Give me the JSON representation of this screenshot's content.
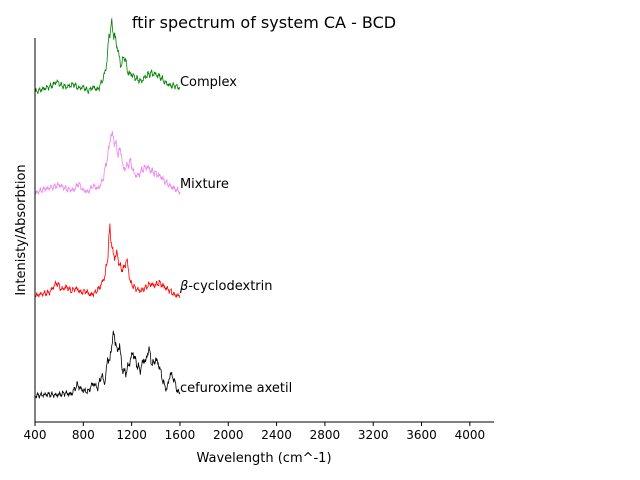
{
  "chart_data": {
    "type": "line",
    "title": "ftir spectrum of system CA - BCD",
    "xlabel": "Wavelength (cm^-1)",
    "ylabel": "Intenisty/Absorbtion",
    "xlim": [
      400,
      4200
    ],
    "xticks": [
      400,
      800,
      1200,
      1600,
      2000,
      2400,
      2800,
      3200,
      3600,
      4000
    ],
    "y_ticks_shown": false,
    "grid": false,
    "series": [
      {
        "name": "cefuroxime axetil",
        "label_parts": [
          {
            "text": "cefuroxime axetil",
            "italic": false
          }
        ],
        "color": "#000000",
        "offset": 0,
        "baseline": 0.08,
        "points": [
          [
            400,
            0.06
          ],
          [
            500,
            0.08
          ],
          [
            580,
            0.07
          ],
          [
            650,
            0.1
          ],
          [
            700,
            0.08
          ],
          [
            750,
            0.22
          ],
          [
            790,
            0.14
          ],
          [
            840,
            0.12
          ],
          [
            880,
            0.24
          ],
          [
            920,
            0.17
          ],
          [
            950,
            0.36
          ],
          [
            980,
            0.24
          ],
          [
            1000,
            0.6
          ],
          [
            1020,
            0.55
          ],
          [
            1040,
            0.88
          ],
          [
            1060,
            0.92
          ],
          [
            1080,
            0.68
          ],
          [
            1100,
            0.8
          ],
          [
            1120,
            0.45
          ],
          [
            1150,
            0.38
          ],
          [
            1180,
            0.52
          ],
          [
            1210,
            0.68
          ],
          [
            1240,
            0.52
          ],
          [
            1270,
            0.42
          ],
          [
            1300,
            0.58
          ],
          [
            1320,
            0.55
          ],
          [
            1340,
            0.75
          ],
          [
            1370,
            0.5
          ],
          [
            1400,
            0.58
          ],
          [
            1430,
            0.48
          ],
          [
            1460,
            0.26
          ],
          [
            1490,
            0.14
          ],
          [
            1520,
            0.38
          ],
          [
            1550,
            0.3
          ],
          [
            1580,
            0.12
          ],
          [
            1600,
            0.1
          ]
        ]
      },
      {
        "name": "β-cyclodextrin",
        "label_parts": [
          {
            "text": "β",
            "italic": true
          },
          {
            "text": "-cyclodextrin",
            "italic": false
          }
        ],
        "color": "#ff0000",
        "offset": 1,
        "baseline": 0.05,
        "points": [
          [
            400,
            0.03
          ],
          [
            460,
            0.06
          ],
          [
            520,
            0.08
          ],
          [
            580,
            0.22
          ],
          [
            620,
            0.12
          ],
          [
            660,
            0.16
          ],
          [
            700,
            0.1
          ],
          [
            740,
            0.14
          ],
          [
            780,
            0.08
          ],
          [
            820,
            0.1
          ],
          [
            860,
            0.04
          ],
          [
            900,
            0.08
          ],
          [
            940,
            0.16
          ],
          [
            980,
            0.32
          ],
          [
            1000,
            0.56
          ],
          [
            1020,
            1.0
          ],
          [
            1040,
            0.68
          ],
          [
            1060,
            0.58
          ],
          [
            1080,
            0.64
          ],
          [
            1100,
            0.46
          ],
          [
            1130,
            0.4
          ],
          [
            1160,
            0.55
          ],
          [
            1190,
            0.22
          ],
          [
            1230,
            0.14
          ],
          [
            1270,
            0.1
          ],
          [
            1310,
            0.14
          ],
          [
            1350,
            0.2
          ],
          [
            1390,
            0.18
          ],
          [
            1430,
            0.22
          ],
          [
            1470,
            0.16
          ],
          [
            1520,
            0.1
          ],
          [
            1560,
            0.04
          ],
          [
            1600,
            0.03
          ]
        ]
      },
      {
        "name": "Mixture",
        "label_parts": [
          {
            "text": "Mixture",
            "italic": false
          }
        ],
        "color": "#ee82ee",
        "offset": 2,
        "baseline": 0.06,
        "points": [
          [
            400,
            0.04
          ],
          [
            480,
            0.1
          ],
          [
            540,
            0.12
          ],
          [
            600,
            0.16
          ],
          [
            660,
            0.1
          ],
          [
            720,
            0.08
          ],
          [
            760,
            0.18
          ],
          [
            800,
            0.08
          ],
          [
            840,
            0.06
          ],
          [
            880,
            0.15
          ],
          [
            920,
            0.1
          ],
          [
            960,
            0.22
          ],
          [
            1000,
            0.55
          ],
          [
            1030,
            0.9
          ],
          [
            1060,
            0.78
          ],
          [
            1090,
            0.6
          ],
          [
            1110,
            0.68
          ],
          [
            1130,
            0.38
          ],
          [
            1160,
            0.42
          ],
          [
            1190,
            0.5
          ],
          [
            1220,
            0.32
          ],
          [
            1250,
            0.28
          ],
          [
            1290,
            0.38
          ],
          [
            1330,
            0.42
          ],
          [
            1360,
            0.36
          ],
          [
            1400,
            0.32
          ],
          [
            1440,
            0.28
          ],
          [
            1480,
            0.2
          ],
          [
            1520,
            0.14
          ],
          [
            1560,
            0.1
          ],
          [
            1600,
            0.06
          ]
        ]
      },
      {
        "name": "Complex",
        "label_parts": [
          {
            "text": "Complex",
            "italic": false
          }
        ],
        "color": "#008000",
        "offset": 3,
        "baseline": 0.06,
        "points": [
          [
            400,
            0.03
          ],
          [
            480,
            0.08
          ],
          [
            540,
            0.12
          ],
          [
            580,
            0.18
          ],
          [
            620,
            0.12
          ],
          [
            660,
            0.1
          ],
          [
            720,
            0.14
          ],
          [
            760,
            0.08
          ],
          [
            800,
            0.1
          ],
          [
            840,
            0.04
          ],
          [
            880,
            0.1
          ],
          [
            920,
            0.06
          ],
          [
            960,
            0.2
          ],
          [
            990,
            0.38
          ],
          [
            1010,
            0.78
          ],
          [
            1030,
            1.0
          ],
          [
            1060,
            0.82
          ],
          [
            1090,
            0.6
          ],
          [
            1110,
            0.4
          ],
          [
            1140,
            0.55
          ],
          [
            1170,
            0.3
          ],
          [
            1200,
            0.28
          ],
          [
            1240,
            0.22
          ],
          [
            1280,
            0.18
          ],
          [
            1320,
            0.26
          ],
          [
            1360,
            0.3
          ],
          [
            1400,
            0.28
          ],
          [
            1440,
            0.24
          ],
          [
            1480,
            0.16
          ],
          [
            1520,
            0.12
          ],
          [
            1560,
            0.12
          ],
          [
            1600,
            0.08
          ]
        ]
      }
    ]
  }
}
